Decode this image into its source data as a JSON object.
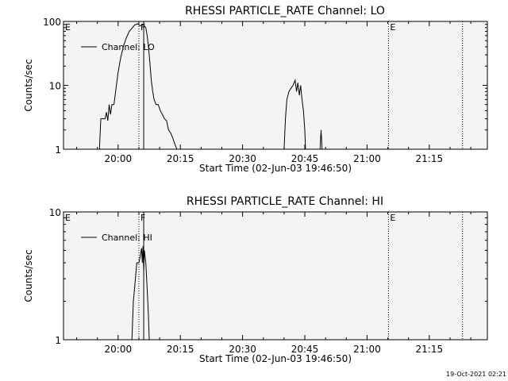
{
  "chart_data": [
    {
      "type": "line",
      "title": "RHESSI PARTICLE_RATE Channel: LO",
      "xlabel": "Start Time (02-Jun-03 19:46:50)",
      "ylabel": "Counts/sec",
      "yscale": "log",
      "ylim": [
        1,
        100
      ],
      "xlim": [
        "19:46:50",
        "21:29:00"
      ],
      "x_ticks": [
        "20:00",
        "20:15",
        "20:30",
        "20:45",
        "21:00",
        "21:15"
      ],
      "y_ticks": [
        "1",
        "10",
        "100"
      ],
      "legend": "Channel: LO",
      "legend_placement": "top-left",
      "grid": false,
      "markers": [
        {
          "label": "E",
          "time": "19:46:50",
          "style": "none"
        },
        {
          "label": "F",
          "time": "20:05:00",
          "style": "dotted"
        },
        {
          "time": "20:06:10",
          "style": "solid"
        },
        {
          "label": "E",
          "time": "21:05:10",
          "style": "dotted"
        },
        {
          "time": "21:23:00",
          "style": "dotted"
        }
      ],
      "series": [
        {
          "name": "Channel: LO",
          "segments": [
            [
              [
                "19:55:30",
                1
              ],
              [
                "19:55:50",
                3
              ],
              [
                "19:56:50",
                3
              ],
              [
                "19:57:10",
                3.8
              ],
              [
                "19:57:30",
                2.8
              ],
              [
                "19:57:50",
                5
              ],
              [
                "19:58:10",
                3.5
              ],
              [
                "19:58:30",
                5
              ],
              [
                "19:59:00",
                5
              ],
              [
                "19:59:30",
                9
              ],
              [
                "20:00:00",
                16
              ],
              [
                "20:00:40",
                28
              ],
              [
                "20:01:20",
                42
              ],
              [
                "20:02:00",
                56
              ],
              [
                "20:02:40",
                70
              ],
              [
                "20:03:20",
                78
              ],
              [
                "20:04:00",
                88
              ],
              [
                "20:04:40",
                92
              ],
              [
                "20:05:20",
                85
              ],
              [
                "20:06:00",
                90
              ],
              [
                "20:06:40",
                80
              ],
              [
                "20:07:00",
                60
              ],
              [
                "20:07:20",
                40
              ],
              [
                "20:07:40",
                22
              ],
              [
                "20:08:00",
                12
              ],
              [
                "20:08:20",
                8
              ],
              [
                "20:08:40",
                6
              ],
              [
                "20:09:10",
                5
              ],
              [
                "20:09:40",
                5
              ],
              [
                "20:10:10",
                4
              ],
              [
                "20:10:40",
                3.5
              ],
              [
                "20:11:10",
                3
              ],
              [
                "20:11:40",
                2.8
              ],
              [
                "20:12:10",
                2
              ],
              [
                "20:12:40",
                1.8
              ],
              [
                "20:13:10",
                1.5
              ],
              [
                "20:13:40",
                1.2
              ],
              [
                "20:14:10",
                1
              ]
            ],
            [
              [
                "20:40:00",
                1
              ],
              [
                "20:40:20",
                3
              ],
              [
                "20:40:40",
                6
              ],
              [
                "20:41:10",
                8
              ],
              [
                "20:41:40",
                9
              ],
              [
                "20:42:10",
                10
              ],
              [
                "20:42:40",
                12
              ],
              [
                "20:43:00",
                8
              ],
              [
                "20:43:20",
                11
              ],
              [
                "20:43:40",
                7
              ],
              [
                "20:44:00",
                10
              ],
              [
                "20:44:20",
                6
              ],
              [
                "20:44:40",
                4
              ],
              [
                "20:45:00",
                2
              ],
              [
                "20:45:10",
                1
              ]
            ],
            [
              [
                "20:48:40",
                1
              ],
              [
                "20:48:55",
                2
              ],
              [
                "20:49:10",
                1
              ]
            ]
          ]
        }
      ]
    },
    {
      "type": "line",
      "title": "RHESSI PARTICLE_RATE Channel: HI",
      "xlabel": "Start Time (02-Jun-03 19:46:50)",
      "ylabel": "Counts/sec",
      "yscale": "log",
      "ylim": [
        1,
        10
      ],
      "xlim": [
        "19:46:50",
        "21:29:00"
      ],
      "x_ticks": [
        "20:00",
        "20:15",
        "20:30",
        "20:45",
        "21:00",
        "21:15"
      ],
      "y_ticks": [
        "1",
        "10"
      ],
      "legend": "Channel: HI",
      "legend_placement": "top-left",
      "grid": false,
      "markers": [
        {
          "label": "E",
          "time": "19:46:50",
          "style": "none"
        },
        {
          "label": "F",
          "time": "20:05:00",
          "style": "dotted"
        },
        {
          "time": "20:06:10",
          "style": "solid"
        },
        {
          "label": "E",
          "time": "21:05:10",
          "style": "dotted"
        },
        {
          "time": "21:23:00",
          "style": "dotted"
        }
      ],
      "series": [
        {
          "name": "Channel: HI",
          "segments": [
            [
              [
                "20:03:20",
                1
              ],
              [
                "20:03:40",
                2
              ],
              [
                "20:04:10",
                3
              ],
              [
                "20:04:30",
                4
              ],
              [
                "20:05:00",
                4
              ],
              [
                "20:05:20",
                4.5
              ],
              [
                "20:05:40",
                5.2
              ],
              [
                "20:05:50",
                4
              ],
              [
                "20:06:00",
                5.4
              ],
              [
                "20:06:10",
                3.5
              ],
              [
                "20:06:20",
                5
              ],
              [
                "20:06:40",
                4
              ],
              [
                "20:07:00",
                2.5
              ],
              [
                "20:07:20",
                1.5
              ],
              [
                "20:07:30",
                1
              ]
            ]
          ]
        }
      ]
    }
  ],
  "footer": {
    "stamp": "19-Oct-2021 02:21"
  }
}
